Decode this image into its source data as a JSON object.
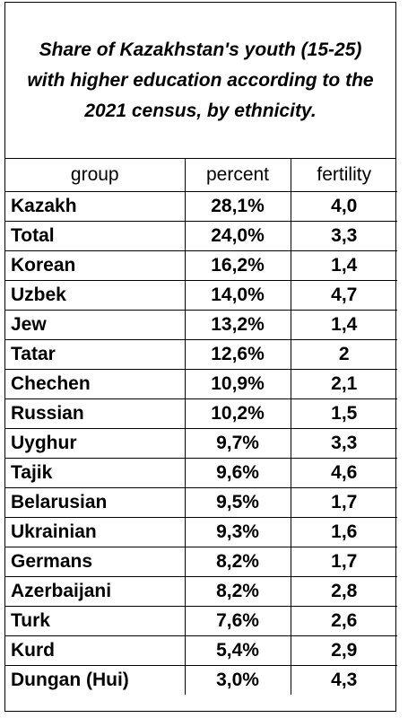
{
  "title": "Share of Kazakhstan's youth (15-25)\nwith higher education according to the\n2021 census, by ethnicity.",
  "columns": [
    "group",
    "percent",
    "fertility"
  ],
  "rows": [
    {
      "group": "Kazakh",
      "percent": "28,1%",
      "fertility": "4,0"
    },
    {
      "group": "Total",
      "percent": "24,0%",
      "fertility": "3,3"
    },
    {
      "group": "Korean",
      "percent": "16,2%",
      "fertility": "1,4"
    },
    {
      "group": "Uzbek",
      "percent": "14,0%",
      "fertility": "4,7"
    },
    {
      "group": "Jew",
      "percent": "13,2%",
      "fertility": "1,4"
    },
    {
      "group": "Tatar",
      "percent": "12,6%",
      "fertility": "2"
    },
    {
      "group": "Chechen",
      "percent": "10,9%",
      "fertility": "2,1"
    },
    {
      "group": "Russian",
      "percent": "10,2%",
      "fertility": "1,5"
    },
    {
      "group": "Uyghur",
      "percent": "9,7%",
      "fertility": "3,3"
    },
    {
      "group": "Tajik",
      "percent": "9,6%",
      "fertility": "4,6"
    },
    {
      "group": "Belarusian",
      "percent": "9,5%",
      "fertility": "1,7"
    },
    {
      "group": "Ukrainian",
      "percent": "9,3%",
      "fertility": "1,6"
    },
    {
      "group": "Germans",
      "percent": "8,2%",
      "fertility": "1,7"
    },
    {
      "group": "Azerbaijani",
      "percent": "8,2%",
      "fertility": "2,8"
    },
    {
      "group": "Turk",
      "percent": "7,6%",
      "fertility": "2,6"
    },
    {
      "group": "Kurd",
      "percent": "5,4%",
      "fertility": "2,9"
    },
    {
      "group": "Dungan (Hui)",
      "percent": "3,0%",
      "fertility": "4,3"
    }
  ]
}
